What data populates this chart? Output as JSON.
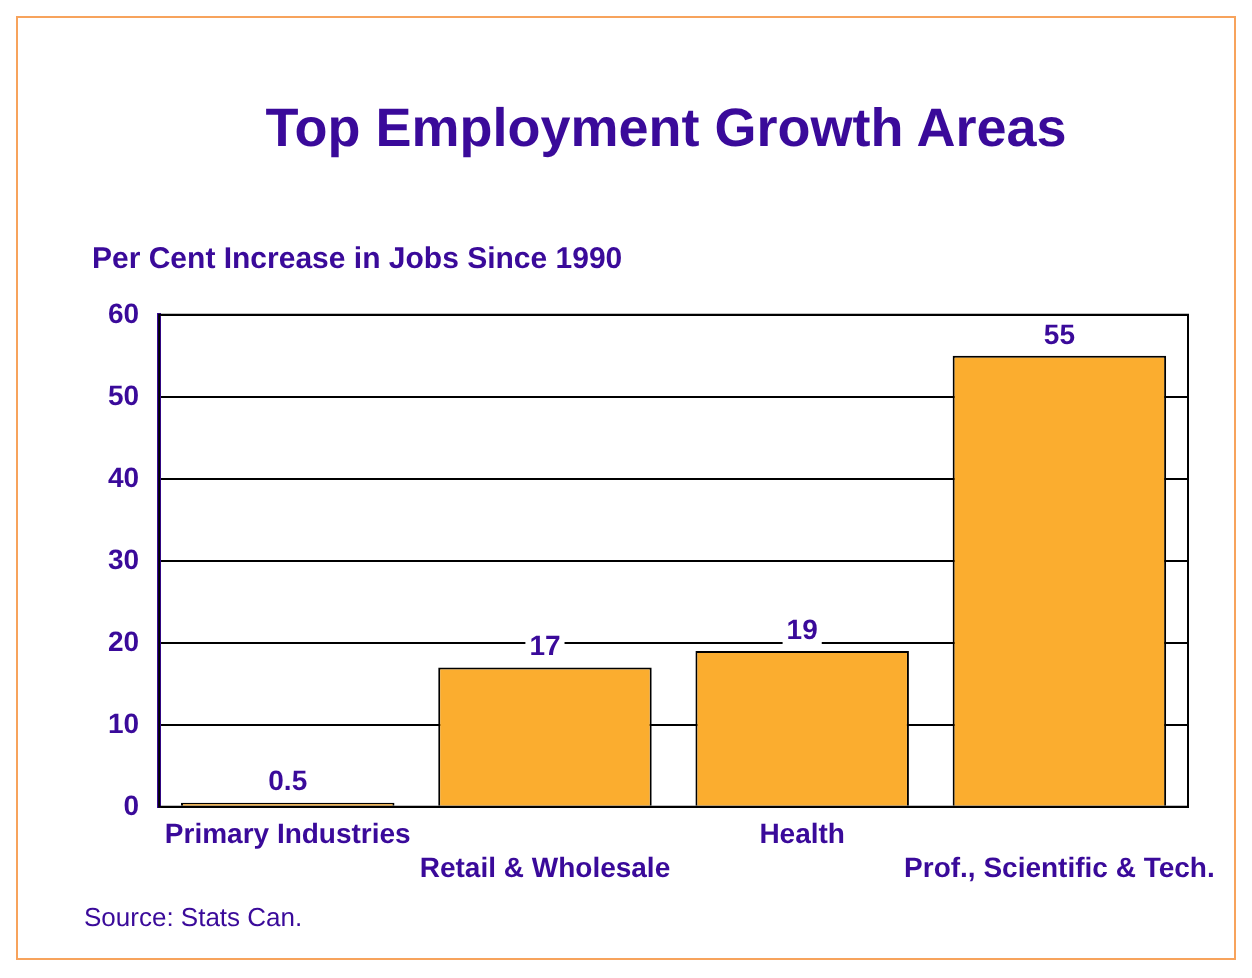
{
  "chart_data": {
    "type": "bar",
    "title": "Top Employment Growth Areas",
    "ylabel": "Per Cent Increase in Jobs Since 1990",
    "categories": [
      "Primary Industries",
      "Retail & Wholesale",
      "Health",
      "Prof., Scientific & Tech."
    ],
    "values": [
      0.5,
      17,
      19,
      55
    ],
    "color": "#fbad2f",
    "ylim": [
      0,
      60
    ],
    "yticks": [
      0,
      10,
      20,
      30,
      40,
      50,
      60
    ],
    "grid": "y",
    "data_labels": true,
    "annotations": [
      "Source: Stats Can."
    ]
  }
}
